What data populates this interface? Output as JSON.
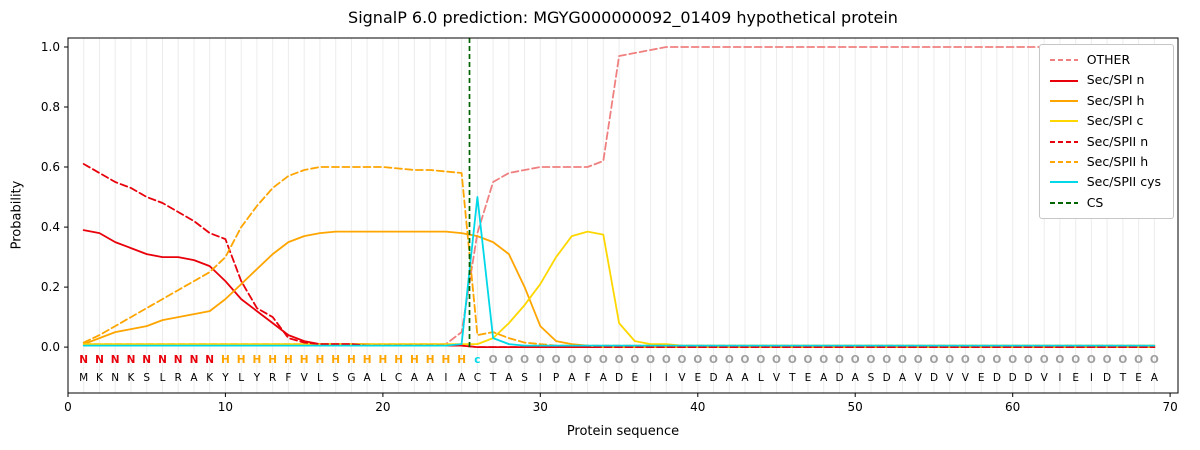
{
  "chart_data": {
    "type": "line",
    "title": "SignalP 6.0 prediction: MGYG000000092_01409 hypothetical protein",
    "xlabel": "Protein sequence",
    "ylabel": "Probability",
    "xlim": [
      0,
      70.5
    ],
    "ylim": [
      -0.153,
      1.03
    ],
    "xticks": [
      0,
      10,
      20,
      30,
      40,
      50,
      60,
      70
    ],
    "yticks": [
      0,
      0.2,
      0.4,
      0.6,
      0.8,
      1.0
    ],
    "grid": "vertical-per-residue",
    "legend_position": "upper right",
    "cs_position": 25.5,
    "sequence": "MKNKSLRAKYLYRFVLSGALCAAIACTASIPAFADEIIVEDAALVTEADASDAVDVVEDDDVIEIDTEA",
    "region_labels": "NNNNNNNNNHHHHHHHHHHHHHHHHcOOOOOOOOOOOOOOOOOOOOOOOOOOOOOOOOOOOOOOOOOOO",
    "colors": {
      "grid": "#ececec",
      "cs": "#006400",
      "axis": "#000000",
      "sequence_text": "#000000",
      "regions": {
        "N": "#e8000b",
        "H": "#ffa500",
        "c": "#00d8e8",
        "O": "#9e9e9e"
      }
    },
    "series": [
      {
        "name": "OTHER",
        "color": "#f08080",
        "dashed": true,
        "values": [
          0.01,
          0.01,
          0.01,
          0.01,
          0.01,
          0.01,
          0.01,
          0.01,
          0.01,
          0.01,
          0.01,
          0.01,
          0.01,
          0.01,
          0.01,
          0.01,
          0.01,
          0.01,
          0.01,
          0.01,
          0.01,
          0.01,
          0.01,
          0.01,
          0.05,
          0.38,
          0.55,
          0.58,
          0.59,
          0.6,
          0.6,
          0.6,
          0.6,
          0.62,
          0.97,
          0.98,
          0.99,
          1.0,
          1.0,
          1.0,
          1.0,
          1.0,
          1.0,
          1.0,
          1.0,
          1.0,
          1.0,
          1.0,
          1.0,
          1.0,
          1.0,
          1.0,
          1.0,
          1.0,
          1.0,
          1.0,
          1.0,
          1.0,
          1.0,
          1.0,
          1.0,
          1.0,
          1.0,
          1.0,
          1.0,
          1.0,
          1.0,
          1.0,
          1.0
        ]
      },
      {
        "name": "Sec/SPI n",
        "color": "#e8000b",
        "dashed": false,
        "values": [
          0.39,
          0.38,
          0.35,
          0.33,
          0.31,
          0.3,
          0.3,
          0.29,
          0.27,
          0.22,
          0.16,
          0.12,
          0.08,
          0.04,
          0.02,
          0.01,
          0.01,
          0.01,
          0.01,
          0.005,
          0.005,
          0.005,
          0.005,
          0.005,
          0.005,
          0,
          0,
          0,
          0,
          0,
          0,
          0,
          0,
          0,
          0,
          0,
          0,
          0,
          0,
          0,
          0,
          0,
          0,
          0,
          0,
          0,
          0,
          0,
          0,
          0,
          0,
          0,
          0,
          0,
          0,
          0,
          0,
          0,
          0,
          0,
          0,
          0,
          0,
          0,
          0,
          0,
          0,
          0,
          0
        ]
      },
      {
        "name": "Sec/SPI h",
        "color": "#ffa500",
        "dashed": false,
        "values": [
          0.01,
          0.03,
          0.05,
          0.06,
          0.07,
          0.09,
          0.1,
          0.11,
          0.12,
          0.16,
          0.21,
          0.26,
          0.31,
          0.35,
          0.37,
          0.38,
          0.385,
          0.385,
          0.385,
          0.385,
          0.385,
          0.385,
          0.385,
          0.385,
          0.38,
          0.37,
          0.35,
          0.31,
          0.2,
          0.07,
          0.02,
          0.01,
          0.005,
          0,
          0,
          0,
          0,
          0,
          0,
          0,
          0,
          0,
          0,
          0,
          0,
          0,
          0,
          0,
          0,
          0,
          0,
          0,
          0,
          0,
          0,
          0,
          0,
          0,
          0,
          0,
          0,
          0,
          0,
          0,
          0,
          0,
          0,
          0,
          0
        ]
      },
      {
        "name": "Sec/SPI c",
        "color": "#ffd700",
        "dashed": false,
        "values": [
          0.01,
          0.01,
          0.01,
          0.01,
          0.01,
          0.01,
          0.01,
          0.01,
          0.01,
          0.01,
          0.01,
          0.01,
          0.01,
          0.01,
          0.01,
          0.01,
          0.01,
          0.01,
          0.01,
          0.01,
          0.01,
          0.01,
          0.01,
          0.01,
          0.01,
          0.01,
          0.03,
          0.08,
          0.14,
          0.21,
          0.3,
          0.37,
          0.385,
          0.375,
          0.08,
          0.02,
          0.01,
          0.01,
          0.005,
          0.005,
          0.005,
          0.005,
          0.005,
          0.005,
          0.005,
          0.005,
          0.005,
          0.005,
          0.005,
          0.005,
          0.005,
          0.005,
          0.005,
          0.005,
          0.005,
          0.005,
          0.005,
          0.005,
          0.005,
          0.005,
          0.005,
          0.005,
          0.005,
          0.005,
          0.005,
          0.005,
          0.005,
          0.005,
          0.005
        ]
      },
      {
        "name": "Sec/SPII n",
        "color": "#e8000b",
        "dashed": true,
        "values": [
          0.61,
          0.58,
          0.55,
          0.53,
          0.5,
          0.48,
          0.45,
          0.42,
          0.38,
          0.36,
          0.22,
          0.13,
          0.1,
          0.03,
          0.015,
          0.01,
          0.01,
          0.01,
          0.005,
          0.005,
          0.005,
          0.005,
          0.005,
          0.005,
          0.005,
          0,
          0,
          0,
          0,
          0,
          0,
          0,
          0,
          0,
          0,
          0,
          0,
          0,
          0,
          0,
          0,
          0,
          0,
          0,
          0,
          0,
          0,
          0,
          0,
          0,
          0,
          0,
          0,
          0,
          0,
          0,
          0,
          0,
          0,
          0,
          0,
          0,
          0,
          0,
          0,
          0,
          0,
          0,
          0
        ]
      },
      {
        "name": "Sec/SPII h",
        "color": "#ffa500",
        "dashed": true,
        "values": [
          0.015,
          0.04,
          0.07,
          0.1,
          0.13,
          0.16,
          0.19,
          0.22,
          0.25,
          0.3,
          0.4,
          0.47,
          0.53,
          0.57,
          0.59,
          0.6,
          0.6,
          0.6,
          0.6,
          0.6,
          0.595,
          0.59,
          0.59,
          0.585,
          0.58,
          0.04,
          0.05,
          0.03,
          0.015,
          0.01,
          0.005,
          0.005,
          0.005,
          0.005,
          0.005,
          0.005,
          0.005,
          0.005,
          0.005,
          0.005,
          0.005,
          0.005,
          0.005,
          0.005,
          0.005,
          0.005,
          0.005,
          0.005,
          0.005,
          0.005,
          0.005,
          0.005,
          0.005,
          0.005,
          0.005,
          0.005,
          0.005,
          0.005,
          0.005,
          0.005,
          0.005,
          0.005,
          0.005,
          0.005,
          0.005,
          0.005,
          0.005,
          0.005,
          0.005
        ]
      },
      {
        "name": "Sec/SPII cys",
        "color": "#00d8e8",
        "dashed": false,
        "values": [
          0.005,
          0.005,
          0.005,
          0.005,
          0.005,
          0.005,
          0.005,
          0.005,
          0.005,
          0.005,
          0.005,
          0.005,
          0.005,
          0.005,
          0.005,
          0.005,
          0.005,
          0.005,
          0.005,
          0.005,
          0.005,
          0.005,
          0.005,
          0.005,
          0.01,
          0.5,
          0.03,
          0.01,
          0.005,
          0.005,
          0.005,
          0.005,
          0.005,
          0.005,
          0.005,
          0.005,
          0.005,
          0.005,
          0.005,
          0.005,
          0.005,
          0.005,
          0.005,
          0.005,
          0.005,
          0.005,
          0.005,
          0.005,
          0.005,
          0.005,
          0.005,
          0.005,
          0.005,
          0.005,
          0.005,
          0.005,
          0.005,
          0.005,
          0.005,
          0.005,
          0.005,
          0.005,
          0.005,
          0.005,
          0.005,
          0.005,
          0.005,
          0.005,
          0.005
        ]
      }
    ],
    "legend": [
      {
        "label": "OTHER",
        "color": "#f08080",
        "dashed": true
      },
      {
        "label": "Sec/SPI n",
        "color": "#e8000b",
        "dashed": false
      },
      {
        "label": "Sec/SPI h",
        "color": "#ffa500",
        "dashed": false
      },
      {
        "label": "Sec/SPI c",
        "color": "#ffd700",
        "dashed": false
      },
      {
        "label": "Sec/SPII n",
        "color": "#e8000b",
        "dashed": true
      },
      {
        "label": "Sec/SPII h",
        "color": "#ffa500",
        "dashed": true
      },
      {
        "label": "Sec/SPII cys",
        "color": "#00d8e8",
        "dashed": false
      },
      {
        "label": "CS",
        "color": "#006400",
        "dashed": true
      }
    ]
  }
}
